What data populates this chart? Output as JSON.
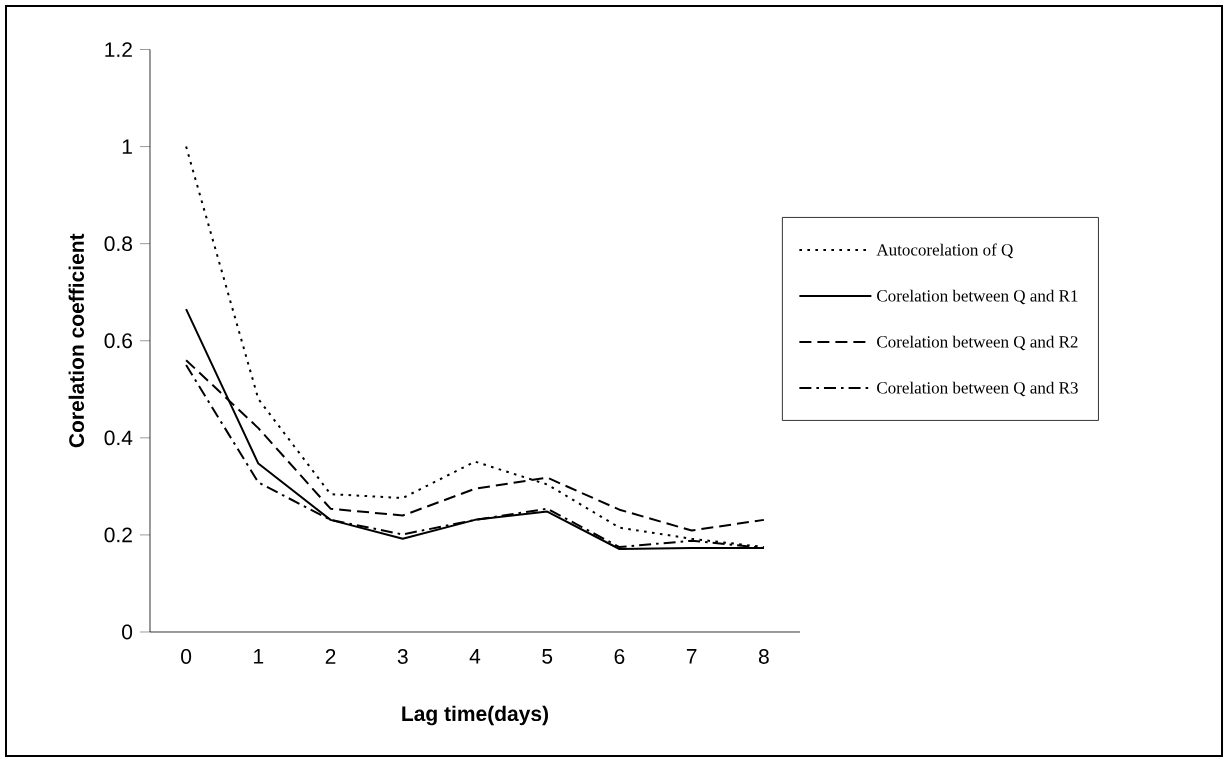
{
  "chart_data": {
    "type": "line",
    "xlabel": "Lag time(days)",
    "ylabel": "Corelation coefficient",
    "categories": [
      "0",
      "1",
      "2",
      "3",
      "4",
      "5",
      "6",
      "7",
      "8"
    ],
    "series": [
      {
        "name": "Autocorelation of Q",
        "color": "#000000",
        "line_style": "dotted",
        "values": [
          1.0,
          0.48,
          0.284,
          0.276,
          0.351,
          0.304,
          0.215,
          0.192,
          0.175
        ]
      },
      {
        "name": "Corelation between Q and R1",
        "color": "#000000",
        "line_style": "solid",
        "values": [
          0.665,
          0.347,
          0.231,
          0.192,
          0.231,
          0.248,
          0.171,
          0.173,
          0.173
        ]
      },
      {
        "name": "Corelation between Q and R2",
        "color": "#000000",
        "line_style": "dashed",
        "values": [
          0.56,
          0.42,
          0.254,
          0.24,
          0.295,
          0.318,
          0.252,
          0.209,
          0.231
        ]
      },
      {
        "name": "Corelation between Q and R3",
        "color": "#000000",
        "line_style": "dashdot",
        "values": [
          0.55,
          0.308,
          0.231,
          0.201,
          0.231,
          0.254,
          0.175,
          0.188,
          0.173
        ]
      }
    ],
    "ylim": [
      0,
      1.2
    ],
    "yticks": [
      0,
      0.2,
      0.4,
      0.6,
      0.8,
      1,
      1.2
    ],
    "grid": false,
    "legend": "right",
    "marker": "none"
  }
}
